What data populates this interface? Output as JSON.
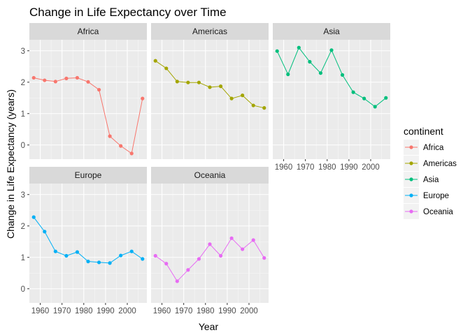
{
  "chart_data": {
    "type": "line",
    "title": "Change in Life Expectancy over Time",
    "xlabel": "Year",
    "ylabel": "Change in Life Expectancy (years)",
    "facet_layout": "3 columns, 2 rows",
    "grid": true,
    "xlim": [
      1955,
      2009
    ],
    "ylim": [
      -0.45,
      3.35
    ],
    "x_ticks": [
      1960,
      1970,
      1980,
      1990,
      2000
    ],
    "y_ticks": [
      0,
      1,
      2,
      3
    ],
    "x": [
      1957,
      1962,
      1967,
      1972,
      1977,
      1982,
      1987,
      1992,
      1997,
      2002,
      2007
    ],
    "legend": {
      "title": "continent",
      "position": "right"
    },
    "series": [
      {
        "name": "Africa",
        "color": "#F8766D",
        "values": [
          2.14,
          2.06,
          2.02,
          2.12,
          2.14,
          2.01,
          1.76,
          0.28,
          -0.03,
          -0.27,
          1.48
        ]
      },
      {
        "name": "Americas",
        "color": "#A3A500",
        "values": [
          2.68,
          2.44,
          2.02,
          1.99,
          1.99,
          1.84,
          1.87,
          1.48,
          1.58,
          1.26,
          1.18
        ]
      },
      {
        "name": "Asia",
        "color": "#00BF7D",
        "values": [
          2.99,
          2.25,
          3.1,
          2.65,
          2.29,
          3.02,
          2.23,
          1.68,
          1.48,
          1.22,
          1.5
        ]
      },
      {
        "name": "Europe",
        "color": "#00B0F6",
        "values": [
          2.28,
          1.82,
          1.19,
          1.05,
          1.17,
          0.87,
          0.84,
          0.82,
          1.06,
          1.19,
          0.95
        ]
      },
      {
        "name": "Oceania",
        "color": "#E76BF3",
        "values": [
          1.05,
          0.8,
          0.24,
          0.6,
          0.95,
          1.42,
          1.05,
          1.61,
          1.26,
          1.55,
          0.98
        ]
      }
    ]
  }
}
